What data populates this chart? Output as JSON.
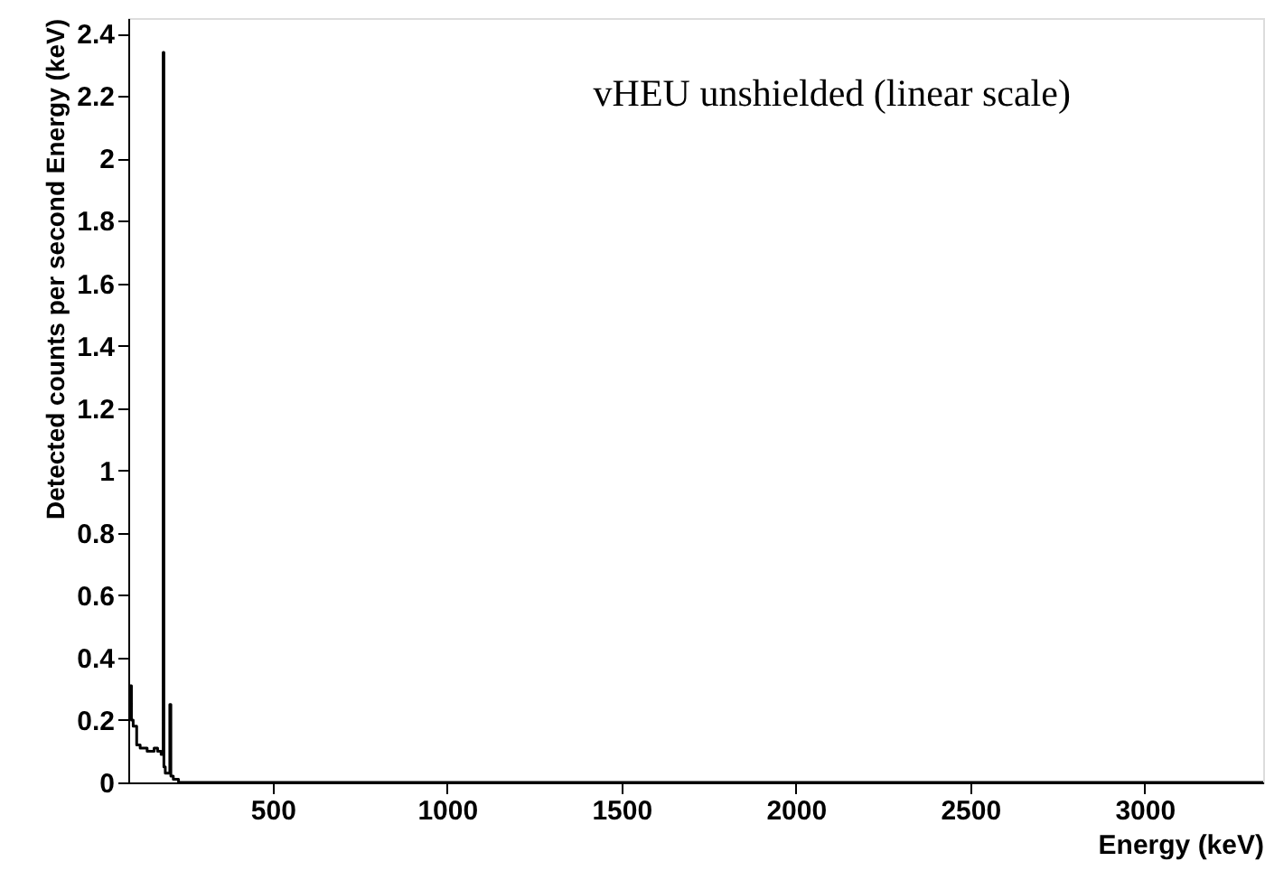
{
  "chart_data": {
    "type": "step",
    "title": "vHEU unshielded (linear scale)",
    "xlabel": "Energy (keV)",
    "ylabel": "Detected counts per second Energy (keV)",
    "x": [
      86,
      95,
      100,
      110,
      120,
      130,
      140,
      150,
      160,
      170,
      180,
      184,
      186,
      188,
      192,
      200,
      205,
      208,
      215,
      230,
      300,
      500,
      1000,
      2000,
      3340
    ],
    "values": [
      0.31,
      0.2,
      0.18,
      0.12,
      0.11,
      0.11,
      0.1,
      0.1,
      0.11,
      0.1,
      0.09,
      0.1,
      2.34,
      0.05,
      0.03,
      0.03,
      0.25,
      0.02,
      0.01,
      0.0,
      0.0,
      0.0,
      0.0,
      0.0,
      0.0
    ],
    "color": "#000000",
    "xlim": [
      86,
      3340
    ],
    "xticks": [
      500,
      1000,
      1500,
      2000,
      2500,
      3000
    ],
    "ylim": [
      0,
      2.45
    ],
    "yticks": [
      0,
      0.2,
      0.4,
      0.6,
      0.8,
      1,
      1.2,
      1.4,
      1.6,
      1.8,
      2,
      2.2,
      2.4
    ],
    "grid": false
  }
}
